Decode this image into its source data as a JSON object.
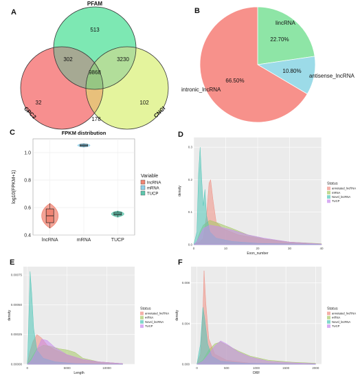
{
  "panels": {
    "A": "A",
    "B": "B",
    "C": "C",
    "D": "D",
    "E": "E",
    "F": "F"
  },
  "chart_data": [
    {
      "panel": "A",
      "type": "venn",
      "sets": [
        "PFAM",
        "CPC2",
        "CNCI"
      ],
      "regions": {
        "pfam_only": "513",
        "cpc2_only": "32",
        "cnci_only": "102",
        "pfam_cpc2": "302",
        "pfam_cnci": "3230",
        "cpc2_cnci": "178",
        "all": "9868"
      },
      "colors": {
        "PFAM": "#7de8b3",
        "CPC2": "#f78f8f",
        "CNCI": "#e4f49d",
        "center": "#96c683",
        "pfam_cpc2": "#a6a993",
        "pfam_cnci": "#b2de9a",
        "cpc2_cnci": "#e8c07b"
      }
    },
    {
      "panel": "B",
      "type": "pie",
      "slices": [
        {
          "label": "lincRNA",
          "value": 22.7,
          "text": "22.70%",
          "color": "#8ee5a6"
        },
        {
          "label": "antisense_lncRNA",
          "value": 10.8,
          "text": "10.80%",
          "color": "#9cdbe8"
        },
        {
          "label": "intronic_lncRNA",
          "value": 66.5,
          "text": "66.50%",
          "color": "#f7918b"
        }
      ]
    },
    {
      "panel": "C",
      "type": "violin",
      "title": "FPKM distribution",
      "ylabel": "log10(FPKM+1)",
      "categories": [
        "lncRNA",
        "mRNA",
        "TUCP"
      ],
      "yticks": [
        "0.4",
        "0.6",
        "0.8",
        "1.0"
      ],
      "ylim": [
        0.4,
        1.1
      ],
      "boxes": [
        {
          "name": "lncRNA",
          "min": 0.45,
          "q1": 0.49,
          "median": 0.54,
          "q3": 0.59,
          "max": 0.63,
          "color": "#f08574"
        },
        {
          "name": "mRNA",
          "min": 1.04,
          "q1": 1.045,
          "median": 1.052,
          "q3": 1.06,
          "max": 1.065,
          "color": "#8fd0ea"
        },
        {
          "name": "TUCP",
          "min": 0.53,
          "q1": 0.545,
          "median": 0.553,
          "q3": 0.565,
          "max": 0.575,
          "color": "#5ec7ad"
        }
      ],
      "legend_title": "Variable",
      "legend": [
        "lncRNA",
        "mRNA",
        "TUCP"
      ]
    },
    {
      "panel": "D",
      "type": "density",
      "xlabel": "Exon_number",
      "ylabel": "density",
      "xticks": [
        "0",
        "10",
        "20",
        "30",
        "40"
      ],
      "xlim": [
        0,
        40
      ],
      "yticks": [
        "0.0",
        "0.1",
        "0.2",
        "0.3"
      ],
      "ylim": [
        0,
        0.33
      ],
      "legend_title": "Status",
      "series": [
        {
          "name": "annotated_lncRNA",
          "color": "#f08f83",
          "points": [
            [
              0,
              0
            ],
            [
              1,
              0.005
            ],
            [
              2,
              0.01
            ],
            [
              3,
              0.02
            ],
            [
              4,
              0.09
            ],
            [
              4.8,
              0.19
            ],
            [
              5.3,
              0.2
            ],
            [
              6,
              0.14
            ],
            [
              7,
              0.07
            ],
            [
              9,
              0.05
            ],
            [
              14,
              0.03
            ],
            [
              20,
              0.02
            ],
            [
              30,
              0.008
            ],
            [
              40,
              0.002
            ]
          ]
        },
        {
          "name": "mRNA",
          "color": "#a6c966",
          "points": [
            [
              0,
              0
            ],
            [
              1,
              0.01
            ],
            [
              2,
              0.04
            ],
            [
              3,
              0.06
            ],
            [
              5,
              0.075
            ],
            [
              8,
              0.065
            ],
            [
              12,
              0.05
            ],
            [
              17,
              0.03
            ],
            [
              22,
              0.018
            ],
            [
              30,
              0.008
            ],
            [
              40,
              0.003
            ]
          ]
        },
        {
          "name": "Novel_lncRNA",
          "color": "#4fc6b8",
          "points": [
            [
              0,
              0
            ],
            [
              1,
              0.04
            ],
            [
              1.5,
              0.22
            ],
            [
              2,
              0.3
            ],
            [
              2.5,
              0.2
            ],
            [
              3,
              0.12
            ],
            [
              3.5,
              0.17
            ],
            [
              4,
              0.09
            ],
            [
              5,
              0.04
            ],
            [
              7,
              0.02
            ],
            [
              12,
              0.01
            ],
            [
              20,
              0.004
            ],
            [
              40,
              0.001
            ]
          ]
        },
        {
          "name": "TUCP",
          "color": "#c88aee",
          "points": [
            [
              0,
              0
            ],
            [
              1,
              0.01
            ],
            [
              2,
              0.03
            ],
            [
              3,
              0.05
            ],
            [
              5,
              0.06
            ],
            [
              8,
              0.055
            ],
            [
              12,
              0.045
            ],
            [
              17,
              0.03
            ],
            [
              22,
              0.02
            ],
            [
              30,
              0.008
            ],
            [
              40,
              0.002
            ]
          ]
        }
      ]
    },
    {
      "panel": "E",
      "type": "density",
      "xlabel": "Length",
      "ylabel": "density",
      "xticks": [
        "0",
        "5000",
        "10000"
      ],
      "xlim": [
        -500,
        13500
      ],
      "yticks": [
        "0.00000",
        "0.00025",
        "0.00050",
        "0.00075"
      ],
      "ylim": [
        0,
        0.00082
      ],
      "legend_title": "Status",
      "series": [
        {
          "name": "annotated_lncRNA",
          "color": "#f08f83",
          "points": [
            [
              0,
              0
            ],
            [
              300,
              0.0001
            ],
            [
              700,
              0.00019
            ],
            [
              1200,
              0.00025
            ],
            [
              1800,
              0.00022
            ],
            [
              2500,
              0.00016
            ],
            [
              3500,
              0.00012
            ],
            [
              5000,
              8e-05
            ],
            [
              7000,
              4e-05
            ],
            [
              9000,
              2e-05
            ],
            [
              12000,
              5e-06
            ]
          ]
        },
        {
          "name": "mRNA",
          "color": "#a6c966",
          "points": [
            [
              0,
              0
            ],
            [
              500,
              5e-05
            ],
            [
              1200,
              0.00013
            ],
            [
              2000,
              0.00016
            ],
            [
              3000,
              0.00015
            ],
            [
              4000,
              0.00013
            ],
            [
              5000,
              0.00012
            ],
            [
              6000,
              0.0001
            ],
            [
              7000,
              5e-05
            ],
            [
              9000,
              2e-05
            ],
            [
              12000,
              5e-06
            ]
          ]
        },
        {
          "name": "Novel_lncRNA",
          "color": "#4fc6b8",
          "points": [
            [
              0,
              0
            ],
            [
              150,
              0.0003
            ],
            [
              350,
              0.00078
            ],
            [
              550,
              0.0006
            ],
            [
              800,
              0.0003
            ],
            [
              1200,
              0.00012
            ],
            [
              2000,
              5e-05
            ],
            [
              3500,
              2e-05
            ],
            [
              6000,
              5e-06
            ],
            [
              12000,
              0
            ]
          ]
        },
        {
          "name": "TUCP",
          "color": "#c88aee",
          "points": [
            [
              0,
              0
            ],
            [
              500,
              3e-05
            ],
            [
              1200,
              0.00012
            ],
            [
              1800,
              0.00021
            ],
            [
              2500,
              0.0002
            ],
            [
              3500,
              0.00014
            ],
            [
              5000,
              8e-05
            ],
            [
              7000,
              4e-05
            ],
            [
              9000,
              2e-05
            ],
            [
              12000,
              5e-06
            ]
          ]
        }
      ]
    },
    {
      "panel": "F",
      "type": "density",
      "xlabel": "ORF",
      "ylabel": "density",
      "xticks": [
        "0",
        "500",
        "1000",
        "1500",
        "2000"
      ],
      "xlim": [
        -100,
        2100
      ],
      "yticks": [
        "0.000",
        "0.004",
        "0.008"
      ],
      "ylim": [
        0,
        0.0096
      ],
      "legend_title": "Status",
      "series": [
        {
          "name": "annotated_lncRNA",
          "color": "#f08f83",
          "points": [
            [
              0,
              0
            ],
            [
              60,
              0.001
            ],
            [
              100,
              0.005
            ],
            [
              120,
              0.0092
            ],
            [
              150,
              0.006
            ],
            [
              200,
              0.0025
            ],
            [
              300,
              0.001
            ],
            [
              500,
              0.0004
            ],
            [
              900,
              0.0001
            ],
            [
              2000,
              0
            ]
          ]
        },
        {
          "name": "mRNA",
          "color": "#a6c966",
          "points": [
            [
              0,
              0
            ],
            [
              100,
              0.0004
            ],
            [
              200,
              0.0014
            ],
            [
              300,
              0.002
            ],
            [
              400,
              0.0022
            ],
            [
              500,
              0.0019
            ],
            [
              700,
              0.0013
            ],
            [
              900,
              0.0008
            ],
            [
              1200,
              0.0004
            ],
            [
              1600,
              0.0002
            ],
            [
              2000,
              0.0001
            ]
          ]
        },
        {
          "name": "Novel_lncRNA",
          "color": "#4fc6b8",
          "points": [
            [
              0,
              0
            ],
            [
              60,
              0.002
            ],
            [
              100,
              0.0056
            ],
            [
              130,
              0.0045
            ],
            [
              180,
              0.002
            ],
            [
              250,
              0.0008
            ],
            [
              400,
              0.0003
            ],
            [
              800,
              0.0001
            ],
            [
              2000,
              0
            ]
          ]
        },
        {
          "name": "TUCP",
          "color": "#c88aee",
          "points": [
            [
              0,
              0
            ],
            [
              100,
              0.0003
            ],
            [
              200,
              0.001
            ],
            [
              300,
              0.0018
            ],
            [
              400,
              0.0023
            ],
            [
              500,
              0.002
            ],
            [
              700,
              0.0012
            ],
            [
              900,
              0.0007
            ],
            [
              1200,
              0.0003
            ],
            [
              1600,
              0.00015
            ],
            [
              2000,
              5e-05
            ]
          ]
        }
      ]
    }
  ]
}
